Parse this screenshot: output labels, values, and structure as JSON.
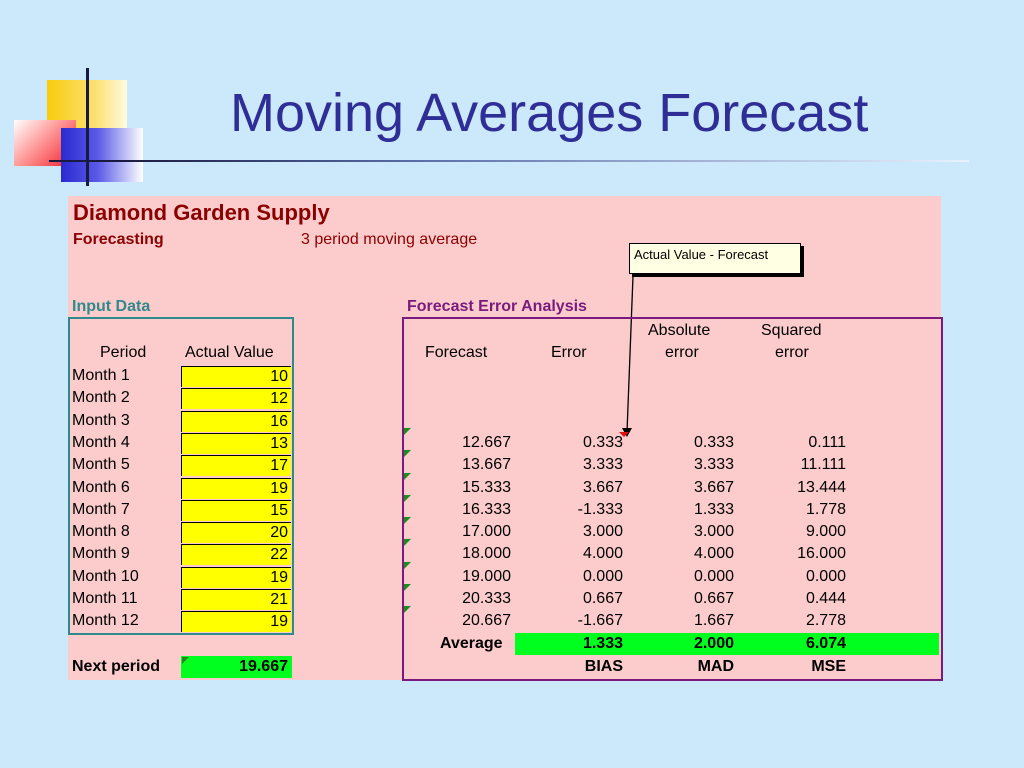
{
  "slide": {
    "title": "Moving Averages Forecast"
  },
  "sheet": {
    "company": "Diamond Garden Supply",
    "subtitle_label": "Forecasting",
    "method": "3 period moving average",
    "callout": "Actual Value - Forecast",
    "input_section_label": "Input Data",
    "error_section_label": "Forecast Error Analysis",
    "headers": {
      "period": "Period",
      "actual": "Actual Value",
      "forecast": "Forecast",
      "error": "Error",
      "abs_line1": "Absolute",
      "abs_line2": "error",
      "sq_line1": "Squared",
      "sq_line2": "error"
    },
    "rows": [
      {
        "period": "Month 1",
        "actual": "10",
        "forecast": "",
        "error": "",
        "abs": "",
        "sq": ""
      },
      {
        "period": "Month 2",
        "actual": "12",
        "forecast": "",
        "error": "",
        "abs": "",
        "sq": ""
      },
      {
        "period": "Month 3",
        "actual": "16",
        "forecast": "",
        "error": "",
        "abs": "",
        "sq": ""
      },
      {
        "period": "Month 4",
        "actual": "13",
        "forecast": "12.667",
        "error": "0.333",
        "abs": "0.333",
        "sq": "0.111"
      },
      {
        "period": "Month 5",
        "actual": "17",
        "forecast": "13.667",
        "error": "3.333",
        "abs": "3.333",
        "sq": "11.111"
      },
      {
        "period": "Month 6",
        "actual": "19",
        "forecast": "15.333",
        "error": "3.667",
        "abs": "3.667",
        "sq": "13.444"
      },
      {
        "period": "Month 7",
        "actual": "15",
        "forecast": "16.333",
        "error": "-1.333",
        "abs": "1.333",
        "sq": "1.778"
      },
      {
        "period": "Month 8",
        "actual": "20",
        "forecast": "17.000",
        "error": "3.000",
        "abs": "3.000",
        "sq": "9.000"
      },
      {
        "period": "Month 9",
        "actual": "22",
        "forecast": "18.000",
        "error": "4.000",
        "abs": "4.000",
        "sq": "16.000"
      },
      {
        "period": "Month 10",
        "actual": "19",
        "forecast": "19.000",
        "error": "0.000",
        "abs": "0.000",
        "sq": "0.000"
      },
      {
        "period": "Month 11",
        "actual": "21",
        "forecast": "20.333",
        "error": "0.667",
        "abs": "0.667",
        "sq": "0.444"
      },
      {
        "period": "Month 12",
        "actual": "19",
        "forecast": "20.667",
        "error": "-1.667",
        "abs": "1.667",
        "sq": "2.778"
      }
    ],
    "average_label": "Average",
    "averages": {
      "bias": "1.333",
      "mad": "2.000",
      "mse": "6.074"
    },
    "metric_labels": {
      "bias": "BIAS",
      "mad": "MAD",
      "mse": "MSE"
    },
    "next_period_label": "Next period",
    "next_period_value": "19.667"
  },
  "colors": {
    "background": "#cce8fb",
    "title": "#2e2e96",
    "panel": "#fccccc",
    "company": "#8b0000",
    "input_label": "#2f8a8e",
    "error_label": "#7a1a7e",
    "input_cell": "#ffff00",
    "result_cell": "#00ff1e"
  }
}
